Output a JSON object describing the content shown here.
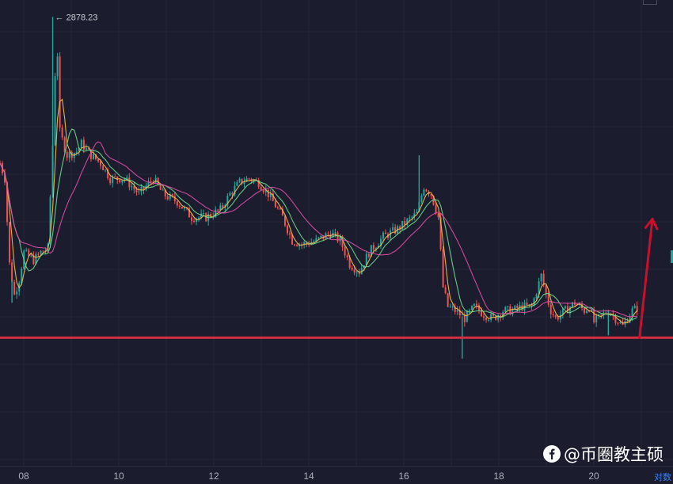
{
  "chart_data": {
    "type": "candlestick",
    "x_ticks": [
      "08",
      "10",
      "12",
      "14",
      "16",
      "18",
      "20"
    ],
    "x_tick_right": "对数",
    "max_annotation": "← 2878.23",
    "max_value": 2878.23,
    "y_domain": [
      2300,
      2900
    ],
    "x_domain": [
      7.6,
      21.65
    ],
    "support_level": 2465,
    "arrow": {
      "direction": "up",
      "from": [
        20.95,
        2465
      ],
      "to": [
        21.22,
        2618
      ]
    },
    "price_path": [
      [
        7.6,
        2690
      ],
      [
        7.7,
        2670
      ],
      [
        7.8,
        2560
      ],
      [
        7.9,
        2520
      ],
      [
        8.0,
        2540
      ],
      [
        8.1,
        2575
      ],
      [
        8.2,
        2570
      ],
      [
        8.3,
        2565
      ],
      [
        8.45,
        2575
      ],
      [
        8.6,
        2580
      ],
      [
        8.72,
        2740
      ],
      [
        8.78,
        2870
      ],
      [
        8.85,
        2730
      ],
      [
        9.0,
        2700
      ],
      [
        9.2,
        2705
      ],
      [
        9.3,
        2715
      ],
      [
        9.5,
        2700
      ],
      [
        9.7,
        2690
      ],
      [
        9.9,
        2670
      ],
      [
        10.2,
        2670
      ],
      [
        10.5,
        2650
      ],
      [
        10.8,
        2670
      ],
      [
        11.0,
        2650
      ],
      [
        11.3,
        2640
      ],
      [
        11.6,
        2620
      ],
      [
        11.9,
        2620
      ],
      [
        12.2,
        2630
      ],
      [
        12.4,
        2650
      ],
      [
        12.6,
        2665
      ],
      [
        12.8,
        2670
      ],
      [
        13.0,
        2665
      ],
      [
        13.2,
        2650
      ],
      [
        13.5,
        2620
      ],
      [
        13.7,
        2590
      ],
      [
        13.9,
        2585
      ],
      [
        14.2,
        2590
      ],
      [
        14.5,
        2600
      ],
      [
        14.7,
        2590
      ],
      [
        14.9,
        2560
      ],
      [
        15.1,
        2550
      ],
      [
        15.3,
        2575
      ],
      [
        15.6,
        2595
      ],
      [
        15.9,
        2605
      ],
      [
        16.1,
        2615
      ],
      [
        16.3,
        2625
      ],
      [
        16.45,
        2660
      ],
      [
        16.6,
        2650
      ],
      [
        16.75,
        2620
      ],
      [
        16.85,
        2530
      ],
      [
        16.95,
        2505
      ],
      [
        17.1,
        2500
      ],
      [
        17.3,
        2490
      ],
      [
        17.5,
        2505
      ],
      [
        17.7,
        2495
      ],
      [
        17.9,
        2490
      ],
      [
        18.1,
        2500
      ],
      [
        18.3,
        2500
      ],
      [
        18.5,
        2505
      ],
      [
        18.7,
        2505
      ],
      [
        18.8,
        2525
      ],
      [
        18.9,
        2545
      ],
      [
        19.0,
        2520
      ],
      [
        19.1,
        2500
      ],
      [
        19.2,
        2490
      ],
      [
        19.4,
        2500
      ],
      [
        19.6,
        2510
      ],
      [
        19.8,
        2500
      ],
      [
        19.9,
        2505
      ],
      [
        20.0,
        2485
      ],
      [
        20.1,
        2490
      ],
      [
        20.3,
        2500
      ],
      [
        20.45,
        2490
      ],
      [
        20.6,
        2480
      ],
      [
        20.8,
        2500
      ],
      [
        20.95,
        2505
      ]
    ],
    "wicks": [
      {
        "x": 8.7,
        "high": 2878.23
      },
      {
        "x": 16.35,
        "high": 2700
      },
      {
        "x": 17.25,
        "low": 2438
      },
      {
        "x": 7.85,
        "low": 2510
      },
      {
        "x": 20.3,
        "low": 2468
      }
    ]
  },
  "colors": {
    "background": "#1b1c2d",
    "grid": "#262839",
    "candle_up": "#26a69a",
    "candle_down": "#ef5350",
    "ma_fast": "#f6c453",
    "ma_mid": "#6fdc8c",
    "ma_slow": "#e04fa8",
    "support_line": "#d32f3e",
    "arrow": "#c8102e"
  },
  "watermark": {
    "text": "@币圈教主硕",
    "icon": "facebook-icon"
  }
}
